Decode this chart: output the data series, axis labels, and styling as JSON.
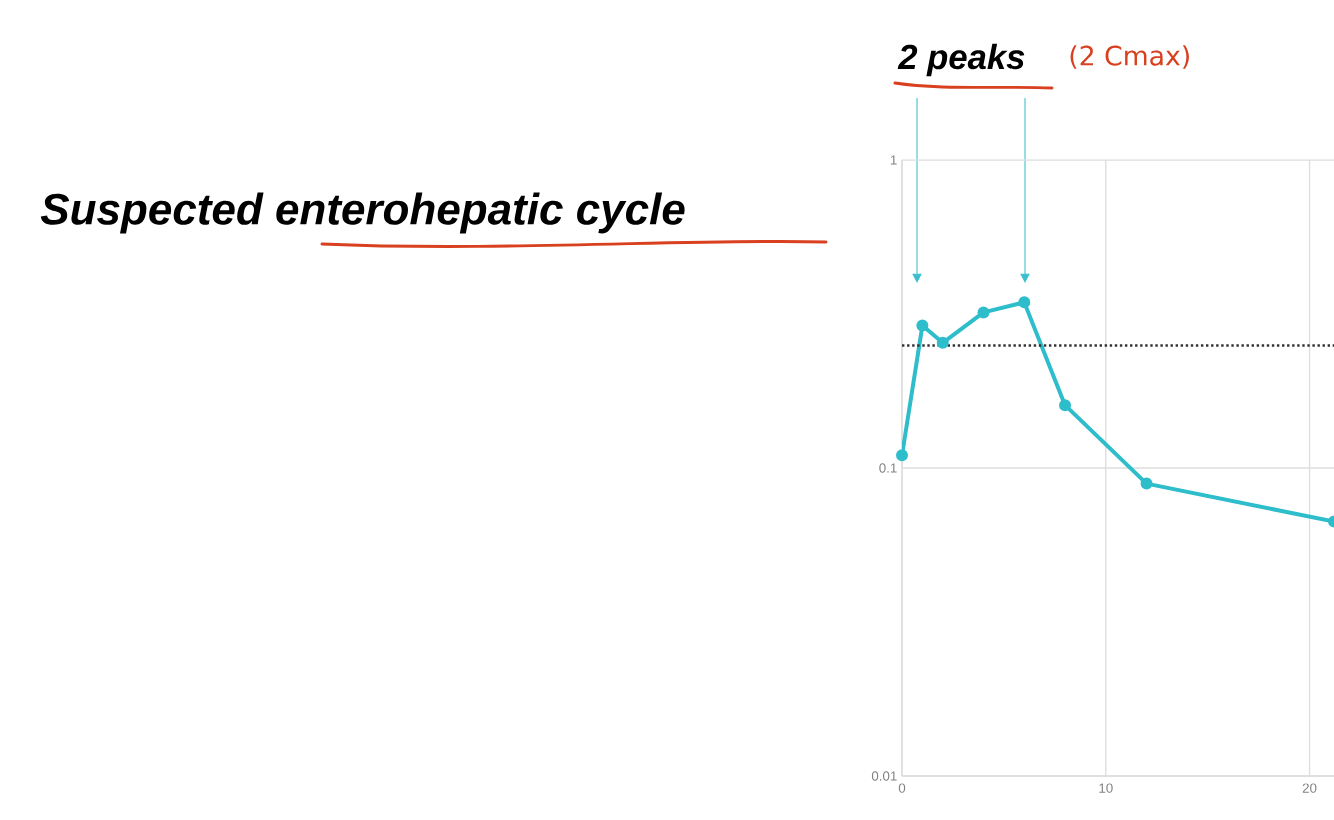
{
  "chart_data": {
    "type": "line",
    "title": "Suspected enterohepatic cycle",
    "annotations": [
      "2 peaks",
      "(2 Cmax)"
    ],
    "x": [
      0,
      1,
      2,
      4,
      6,
      8,
      12,
      21.2
    ],
    "series": [
      {
        "color": "#2ebdca",
        "values": [
          0.11,
          0.29,
          0.255,
          0.32,
          0.345,
          0.16,
          0.089,
          0.067
        ]
      }
    ],
    "xlim": [
      0,
      21.2
    ],
    "xticks": [
      0,
      10,
      20
    ],
    "ylim": [
      0.01,
      1
    ],
    "yticks": [
      0.01,
      0.1,
      1
    ],
    "log": "y",
    "grid": true,
    "marker": "circle",
    "line_style": "solid",
    "ref_lines": [
      {
        "axis": "y",
        "value": 0.25,
        "color": "#333333",
        "line_style": "dotted"
      }
    ]
  }
}
